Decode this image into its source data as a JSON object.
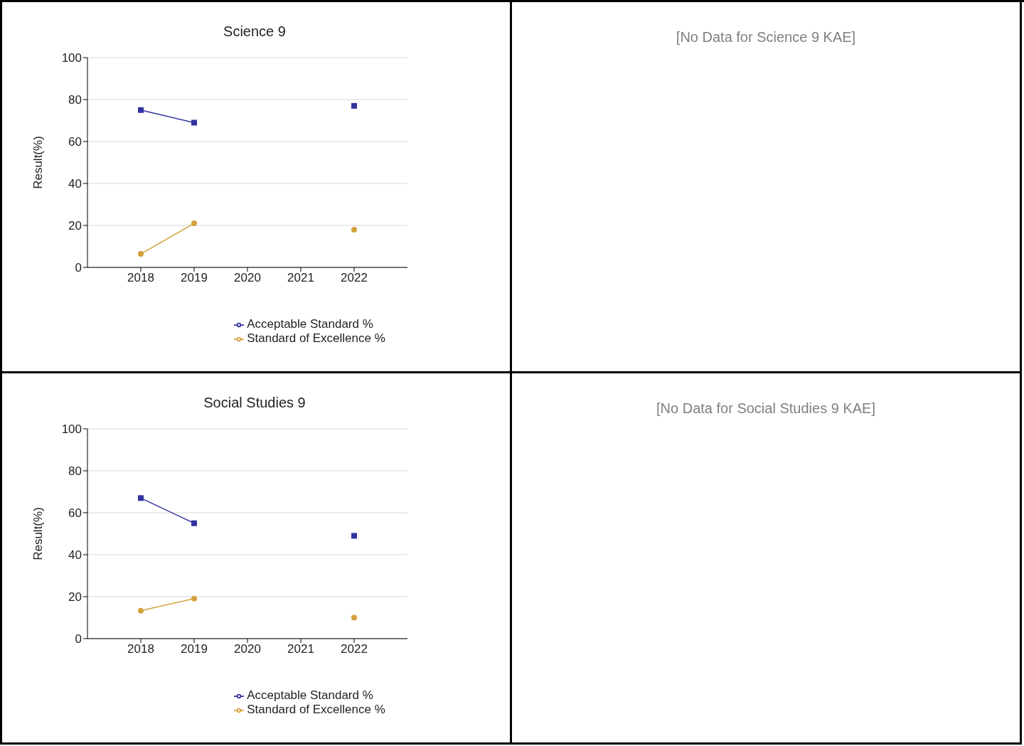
{
  "chart_data": [
    {
      "type": "line",
      "title": "Science 9",
      "ylabel": "Result(%)",
      "categories": [
        "2018",
        "2019",
        "2020",
        "2021",
        "2022"
      ],
      "ylim": [
        0,
        100
      ],
      "yticks": [
        0,
        20,
        40,
        60,
        80,
        100
      ],
      "grid": "y",
      "legend": "bottom",
      "series": [
        {
          "name": "Acceptable Standard %",
          "color": "#3333a0",
          "marker": "square",
          "values": [
            75,
            69,
            null,
            null,
            77
          ]
        },
        {
          "name": "Standard of Excellence %",
          "color": "#d4a03c",
          "marker": "circle",
          "values": [
            6.4,
            21,
            null,
            null,
            18
          ]
        }
      ]
    },
    {
      "type": "other",
      "title": "[No Data for Science 9 KAE]"
    },
    {
      "type": "line",
      "title": "Social Studies 9",
      "ylabel": "Result(%)",
      "categories": [
        "2018",
        "2019",
        "2020",
        "2021",
        "2022"
      ],
      "ylim": [
        0,
        100
      ],
      "yticks": [
        0,
        20,
        40,
        60,
        80,
        100
      ],
      "grid": "y",
      "legend": "bottom",
      "series": [
        {
          "name": "Acceptable Standard %",
          "color": "#3333a0",
          "marker": "square",
          "values": [
            67,
            55,
            null,
            null,
            49
          ]
        },
        {
          "name": "Standard of Excellence %",
          "color": "#d4a03c",
          "marker": "circle",
          "values": [
            13.3,
            19.1,
            null,
            null,
            10
          ]
        }
      ]
    },
    {
      "type": "other",
      "title": "[No Data for Social Studies 9 KAE]"
    }
  ]
}
